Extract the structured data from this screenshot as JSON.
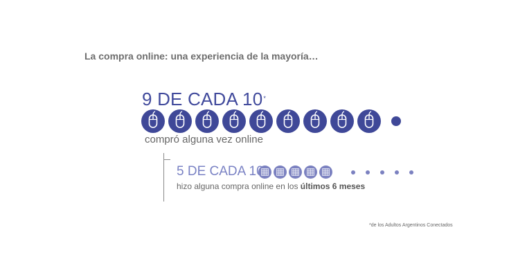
{
  "headline": "La compra online: una experiencia de la mayoría…",
  "stat_main": {
    "value_text": "9 DE CADA 10",
    "marker": "*",
    "icon": "computer-mouse-icon",
    "filled": 9,
    "total": 10,
    "caption": "compró alguna vez online"
  },
  "stat_secondary": {
    "value_text": "5 DE CADA 10",
    "icon": "grid-icon",
    "filled": 5,
    "total": 10,
    "caption_prefix": "hizo alguna compra online en los ",
    "caption_bold": "últimos 6 meses"
  },
  "footnote": "*de los Adultos Argentinos Conectados",
  "colors": {
    "primary": "#3f4898",
    "secondary": "#7b81c0",
    "text_gray": "#666666"
  }
}
